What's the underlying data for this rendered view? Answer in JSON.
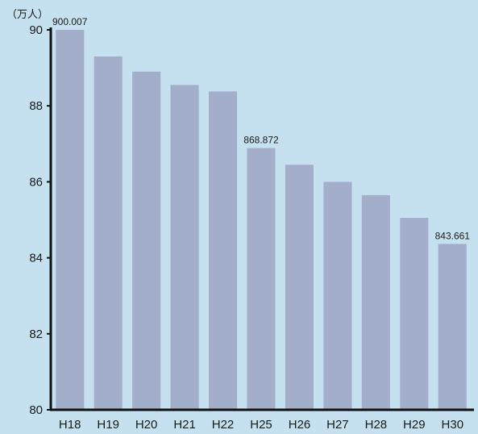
{
  "chart_data": {
    "type": "bar",
    "unit_label": "（万人）",
    "categories": [
      "H18",
      "H19",
      "H20",
      "H21",
      "H22",
      "H25",
      "H26",
      "H27",
      "H28",
      "H29",
      "H30"
    ],
    "values": [
      90.0007,
      89.3,
      88.9,
      88.55,
      88.38,
      86.8872,
      86.45,
      86.0,
      85.65,
      85.05,
      84.3661
    ],
    "data_labels": [
      {
        "index": 0,
        "text": "900.007"
      },
      {
        "index": 5,
        "text": "868.872"
      },
      {
        "index": 10,
        "text": "843.661"
      }
    ],
    "ylim": [
      80,
      90
    ],
    "yticks": [
      80,
      82,
      84,
      86,
      88,
      90
    ],
    "xlabel": "",
    "ylabel": "",
    "title": "",
    "grid": false,
    "colors": {
      "background": "#c5e0ee",
      "bar": "#a3aecb",
      "axis": "#111111"
    }
  }
}
